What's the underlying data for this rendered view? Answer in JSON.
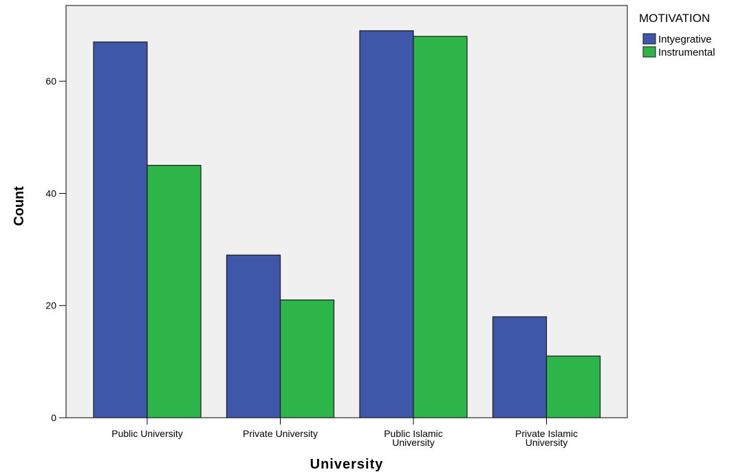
{
  "chart_data": {
    "type": "bar",
    "categories": [
      "Public University",
      "Private University",
      "Public Islamic University",
      "Private Islamic University"
    ],
    "category_lines": [
      [
        "Public University"
      ],
      [
        "Private University"
      ],
      [
        "Public Islamic",
        "University"
      ],
      [
        "Private Islamic",
        "University"
      ]
    ],
    "series": [
      {
        "name": "Intyegrative",
        "values": [
          67,
          29,
          69,
          18
        ]
      },
      {
        "name": "Instrumental",
        "values": [
          45,
          21,
          68,
          11
        ]
      }
    ],
    "xlabel": "University",
    "ylabel": "Count",
    "ylim": [
      0,
      73.5
    ],
    "yticks": [
      0,
      20,
      40,
      60
    ],
    "legend_title": "MOTIVATION",
    "legend_position": "top-right, outside plot",
    "colors": {
      "Intyegrative": "#3f57a8",
      "Instrumental": "#2db54a",
      "plot_background": "#f0f0f0"
    },
    "grid": false
  }
}
